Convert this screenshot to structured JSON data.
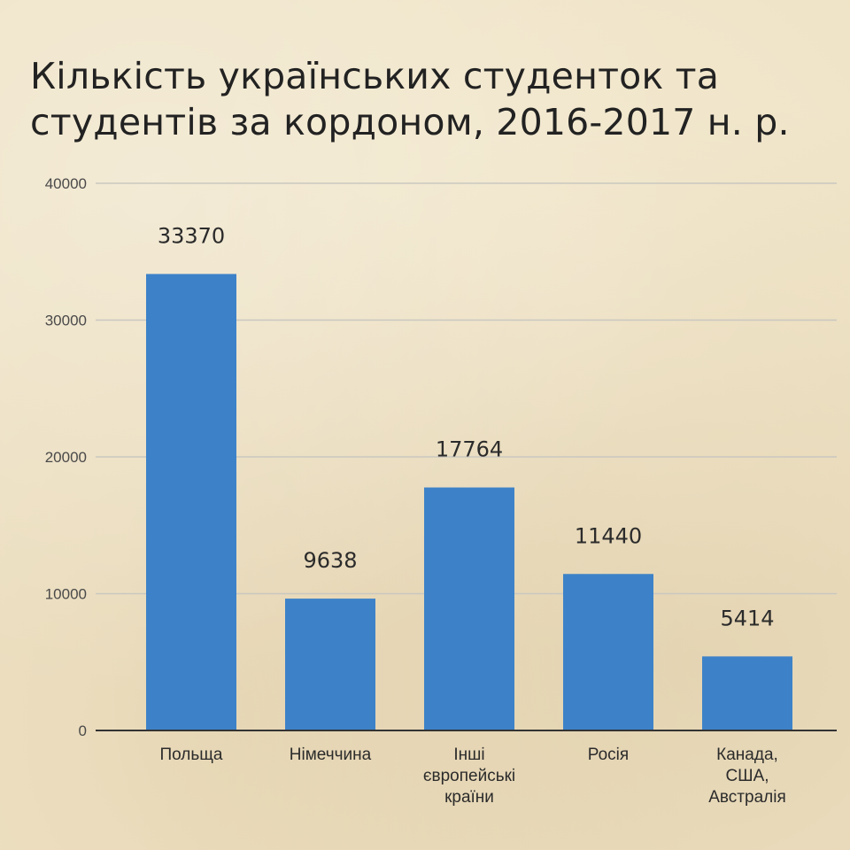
{
  "chart_data": {
    "type": "bar",
    "title": "Кількість українських студенток та студентів за кордоном, 2016-2017 н. р.",
    "categories": [
      [
        "Польща"
      ],
      [
        "Німеччина"
      ],
      [
        "Інші",
        "європейські",
        "країни"
      ],
      [
        "Росія"
      ],
      [
        "Канада,",
        "США,",
        "Австралія"
      ]
    ],
    "values": [
      33370,
      9638,
      17764,
      11440,
      5414
    ],
    "data_labels": [
      "33370",
      "9638",
      "17764",
      "11440",
      "5414"
    ],
    "ylim": [
      0,
      40000
    ],
    "yticks": [
      0,
      10000,
      20000,
      30000,
      40000
    ],
    "ytick_labels": [
      "0",
      "10000",
      "20000",
      "30000",
      "40000"
    ],
    "grid": true,
    "xlabel": "",
    "ylabel": "",
    "bar_color": "#3d82c8",
    "grid_color": "#c9c7c0",
    "axis_color": "#333333"
  }
}
